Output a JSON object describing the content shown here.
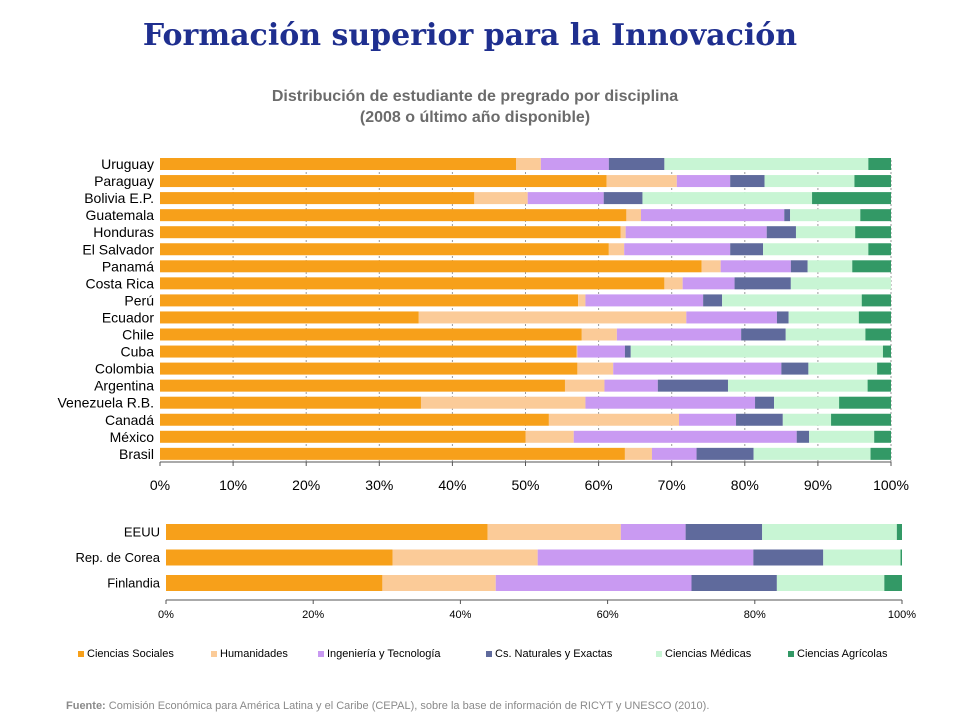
{
  "title": "Formación superior para la Innovación",
  "subtitle_line1": "Distribución de estudiante de pregrado por disciplina",
  "subtitle_line2": "(2008 o último año disponible)",
  "source_label": "Fuente:",
  "source_text": "Comisión Económica para América Latina y el Caribe (CEPAL), sobre la base de información de RICYT y UNESCO (2010).",
  "colors": [
    "#f7a01a",
    "#fbcb98",
    "#c99af2",
    "#5f6a9c",
    "#c8f5d4",
    "#339966"
  ],
  "chart_data": [
    {
      "type": "bar",
      "orientation": "horizontal-stacked-percent",
      "title": "",
      "xlim": [
        0,
        100
      ],
      "grid": true,
      "tick_labels": [
        "0%",
        "10%",
        "20%",
        "30%",
        "40%",
        "50%",
        "60%",
        "70%",
        "80%",
        "90%",
        "100%"
      ],
      "categories": [
        "Uruguay",
        "Paraguay",
        "Bolivia E.P.",
        "Guatemala",
        "Honduras",
        "El Salvador",
        "Panamá",
        "Costa Rica",
        "Perú",
        "Ecuador",
        "Chile",
        "Cuba",
        "Colombia",
        "Argentina",
        "Venezuela R.B.",
        "Canadá",
        "México",
        "Brasil"
      ],
      "series": [
        {
          "name": "Ciencias Sociales",
          "values": [
            48.7,
            61.1,
            43.0,
            63.8,
            63.0,
            61.4,
            74.1,
            69.0,
            57.2,
            35.4,
            57.7,
            57.0,
            57.1,
            55.4,
            35.7,
            53.2,
            50.0,
            63.6
          ]
        },
        {
          "name": "Humanidades",
          "values": [
            3.4,
            9.6,
            7.3,
            2.0,
            0.7,
            2.1,
            2.6,
            2.5,
            1.0,
            36.6,
            4.8,
            0.1,
            4.9,
            5.4,
            22.5,
            17.8,
            6.6,
            3.7
          ]
        },
        {
          "name": "Ingeniería y Tecnología",
          "values": [
            9.3,
            7.3,
            10.4,
            19.6,
            19.3,
            14.5,
            9.6,
            7.1,
            16.1,
            12.4,
            17.0,
            6.5,
            23.0,
            7.3,
            23.2,
            7.8,
            30.5,
            6.1
          ]
        },
        {
          "name": "Cs. Naturales y Exactas",
          "values": [
            7.6,
            4.7,
            5.3,
            0.8,
            4.0,
            4.5,
            2.3,
            7.7,
            2.6,
            1.6,
            6.1,
            0.8,
            3.7,
            9.6,
            2.6,
            6.4,
            1.7,
            7.8
          ]
        },
        {
          "name": "Ciencias Médicas",
          "values": [
            27.9,
            12.3,
            23.2,
            9.6,
            8.1,
            14.4,
            6.1,
            13.7,
            19.1,
            9.6,
            10.9,
            34.5,
            9.4,
            19.1,
            8.9,
            6.6,
            8.9,
            16.0
          ]
        },
        {
          "name": "Ciencias Agrícolas",
          "values": [
            3.1,
            5.0,
            10.8,
            4.2,
            4.9,
            3.1,
            5.3,
            0.0,
            4.0,
            4.4,
            3.5,
            1.1,
            1.9,
            3.2,
            7.1,
            8.2,
            2.3,
            2.8
          ]
        }
      ]
    },
    {
      "type": "bar",
      "orientation": "horizontal-stacked-percent",
      "title": "",
      "xlim": [
        0,
        100
      ],
      "grid": false,
      "tick_labels": [
        "0%",
        "20%",
        "40%",
        "60%",
        "80%",
        "100%"
      ],
      "categories": [
        "EEUU",
        "Rep. de Corea",
        "Finlandia"
      ],
      "series": [
        {
          "name": "Ciencias Sociales",
          "values": [
            43.7,
            30.8,
            29.4
          ]
        },
        {
          "name": "Humanidades",
          "values": [
            18.1,
            19.7,
            15.4
          ]
        },
        {
          "name": "Ingeniería y Tecnología",
          "values": [
            8.8,
            29.3,
            26.6
          ]
        },
        {
          "name": "Cs. Naturales y Exactas",
          "values": [
            10.4,
            9.5,
            11.6
          ]
        },
        {
          "name": "Ciencias Médicas",
          "values": [
            18.3,
            10.5,
            14.6
          ]
        },
        {
          "name": "Ciencias Agrícolas",
          "values": [
            0.7,
            0.2,
            2.4
          ]
        }
      ]
    }
  ],
  "legend": {
    "placement": "bottom",
    "items": [
      "Ciencias Sociales",
      "Humanidades",
      "Ingeniería y Tecnología",
      "Cs. Naturales y Exactas",
      "Ciencias Médicas",
      "Ciencias Agrícolas"
    ]
  }
}
